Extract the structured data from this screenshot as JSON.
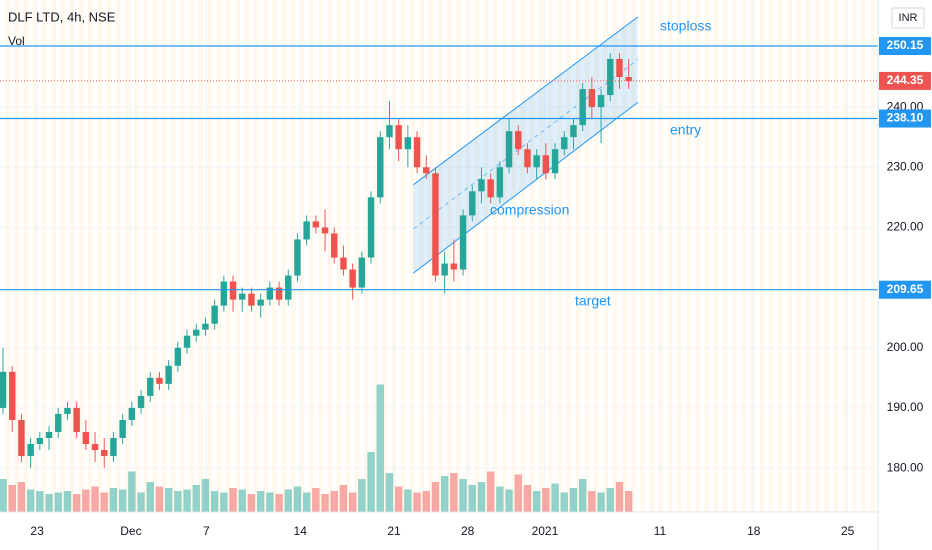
{
  "chart_data": {
    "type": "candlestick",
    "title": "DLF LTD, 4h, NSE",
    "volume_label": "Vol",
    "currency": "INR",
    "up_color": "#26a69a",
    "down_color": "#ef5350",
    "open": [
      190,
      196,
      188,
      182,
      184,
      185,
      186,
      189,
      190,
      186,
      184,
      183,
      182,
      185,
      188,
      190,
      192,
      195,
      194,
      197,
      200,
      202,
      203,
      204,
      207,
      211,
      208,
      209,
      207,
      208,
      210,
      208,
      212,
      218,
      221,
      220,
      219,
      215,
      213,
      210,
      215,
      225,
      235,
      237,
      233,
      235,
      230,
      229,
      212,
      214,
      213,
      222,
      226,
      228,
      225,
      230,
      236,
      233,
      230,
      232,
      229,
      233,
      235,
      237,
      243,
      240,
      242,
      248,
      245
    ],
    "high": [
      200,
      197,
      189,
      185,
      186,
      187,
      190,
      191,
      191,
      188,
      186,
      185,
      186,
      189,
      191,
      193,
      196,
      196,
      198,
      201,
      203,
      204,
      205,
      208,
      212,
      212,
      210,
      210,
      209,
      211,
      211,
      213,
      219,
      222,
      222,
      223,
      220,
      217,
      214,
      216,
      226,
      236,
      241,
      238,
      237,
      236,
      232,
      230,
      216,
      218,
      223,
      227,
      230,
      229,
      231,
      238,
      237,
      234,
      233,
      234,
      234,
      236,
      238,
      244,
      245,
      243,
      249,
      249,
      248
    ],
    "low": [
      189,
      186,
      181,
      180,
      183,
      183,
      185,
      188,
      185,
      183,
      181,
      180,
      181,
      184,
      187,
      189,
      191,
      193,
      193,
      196,
      199,
      201,
      202,
      203,
      206,
      206,
      206,
      206,
      205,
      207,
      207,
      207,
      211,
      217,
      219,
      216,
      214,
      212,
      208,
      209,
      214,
      224,
      233,
      231,
      230,
      229,
      228,
      211,
      209,
      211,
      212,
      221,
      224,
      224,
      224,
      229,
      232,
      229,
      228,
      228,
      228,
      232,
      233,
      236,
      238,
      234,
      241,
      243,
      243
    ],
    "close": [
      196,
      188,
      182,
      184,
      185,
      186,
      189,
      190,
      186,
      184,
      183,
      182,
      185,
      188,
      190,
      192,
      195,
      194,
      197,
      200,
      202,
      203,
      204,
      207,
      211,
      208,
      209,
      207,
      208,
      210,
      208,
      212,
      218,
      221,
      220,
      219,
      215,
      213,
      210,
      215,
      225,
      235,
      237,
      233,
      235,
      230,
      229,
      212,
      214,
      213,
      222,
      226,
      228,
      225,
      230,
      236,
      233,
      230,
      232,
      229,
      233,
      235,
      237,
      243,
      240,
      242,
      248,
      245,
      244.35
    ],
    "volume": [
      22,
      18,
      20,
      15,
      14,
      12,
      13,
      14,
      12,
      15,
      17,
      13,
      16,
      15,
      27,
      13,
      20,
      17,
      16,
      14,
      15,
      18,
      22,
      14,
      13,
      16,
      15,
      12,
      14,
      13,
      12,
      15,
      17,
      13,
      16,
      12,
      14,
      18,
      13,
      22,
      40,
      85,
      26,
      17,
      15,
      13,
      14,
      20,
      24,
      26,
      22,
      18,
      20,
      27,
      17,
      15,
      25,
      18,
      14,
      16,
      19,
      13,
      16,
      22,
      14,
      13,
      16,
      20,
      14
    ],
    "volume_lim": [
      0,
      100
    ],
    "ylim": [
      172.7,
      257.8
    ],
    "yticks": [
      {
        "value": 180,
        "label": "180.00"
      },
      {
        "value": 190,
        "label": "190.00"
      },
      {
        "value": 200,
        "label": "200.00"
      },
      {
        "value": 220,
        "label": "220.00"
      },
      {
        "value": 230,
        "label": "230.00"
      },
      {
        "value": 240,
        "label": "240.00"
      }
    ],
    "xlim": [
      -0.33,
      95.1
    ],
    "xticks": [
      {
        "value": 3.7,
        "label": "23"
      },
      {
        "value": 13.9,
        "label": "Dec"
      },
      {
        "value": 22.1,
        "label": "7"
      },
      {
        "value": 32.3,
        "label": "14"
      },
      {
        "value": 42.5,
        "label": "21"
      },
      {
        "value": 50.5,
        "label": "28"
      },
      {
        "value": 58.9,
        "label": "2021"
      },
      {
        "value": 71.4,
        "label": "11"
      },
      {
        "value": 81.6,
        "label": "18"
      },
      {
        "value": 91.8,
        "label": "25"
      }
    ],
    "grid": true,
    "levels": [
      {
        "value": 250.15,
        "label": "250.15",
        "color": "#2196f3"
      },
      {
        "value": 238.1,
        "label": "238.10",
        "color": "#2196f3"
      },
      {
        "value": 209.65,
        "label": "209.65",
        "color": "#2196f3"
      }
    ],
    "last_price": {
      "value": 244.35,
      "label": "244.35",
      "color": "#ef5350"
    },
    "annotations": [
      "stoploss",
      "entry",
      "compression",
      "target"
    ],
    "channel": {
      "upper": [
        [
          44.6,
          227.1
        ],
        [
          69,
          255
        ]
      ],
      "lower": [
        [
          44.6,
          212.4
        ],
        [
          69,
          240.8
        ]
      ],
      "color": "#2196f3"
    }
  }
}
